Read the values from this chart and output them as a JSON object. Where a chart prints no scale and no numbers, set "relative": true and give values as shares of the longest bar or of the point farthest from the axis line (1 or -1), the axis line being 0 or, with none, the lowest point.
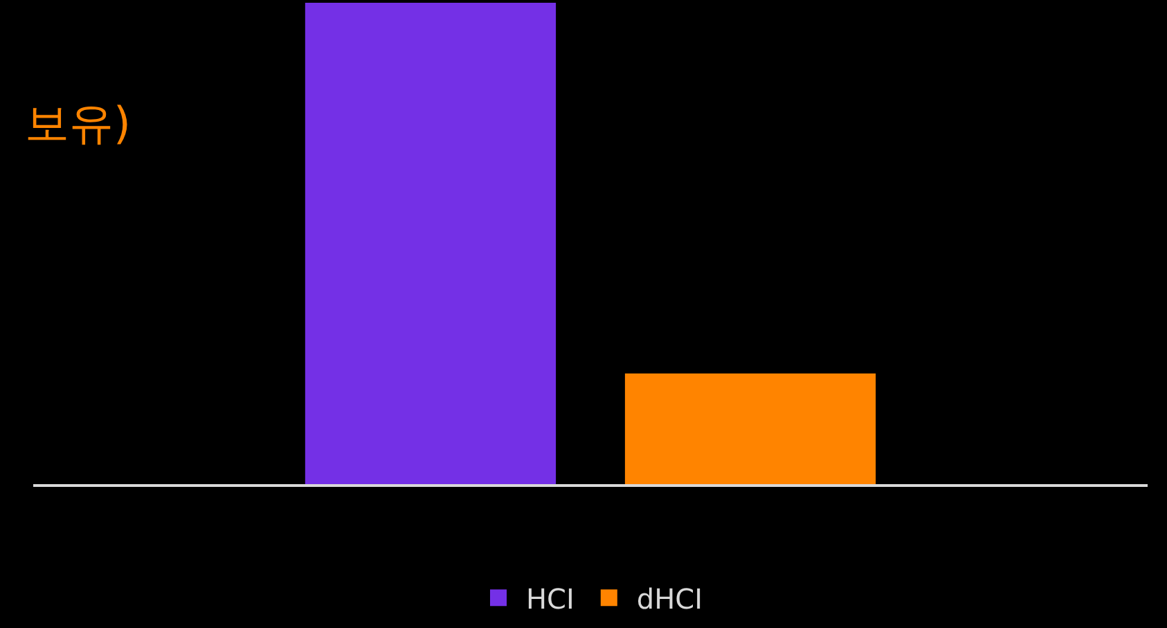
{
  "chart_data": {
    "type": "bar",
    "relative": true,
    "categories": [
      null
    ],
    "legend": "bottom",
    "annotations": [
      "보유)"
    ],
    "series": [
      {
        "name": "HCI",
        "color": "#7430e6",
        "values": [
          1
        ]
      },
      {
        "name": "dHCI",
        "color": "#ff8400",
        "values": [
          0.23
        ]
      }
    ]
  }
}
